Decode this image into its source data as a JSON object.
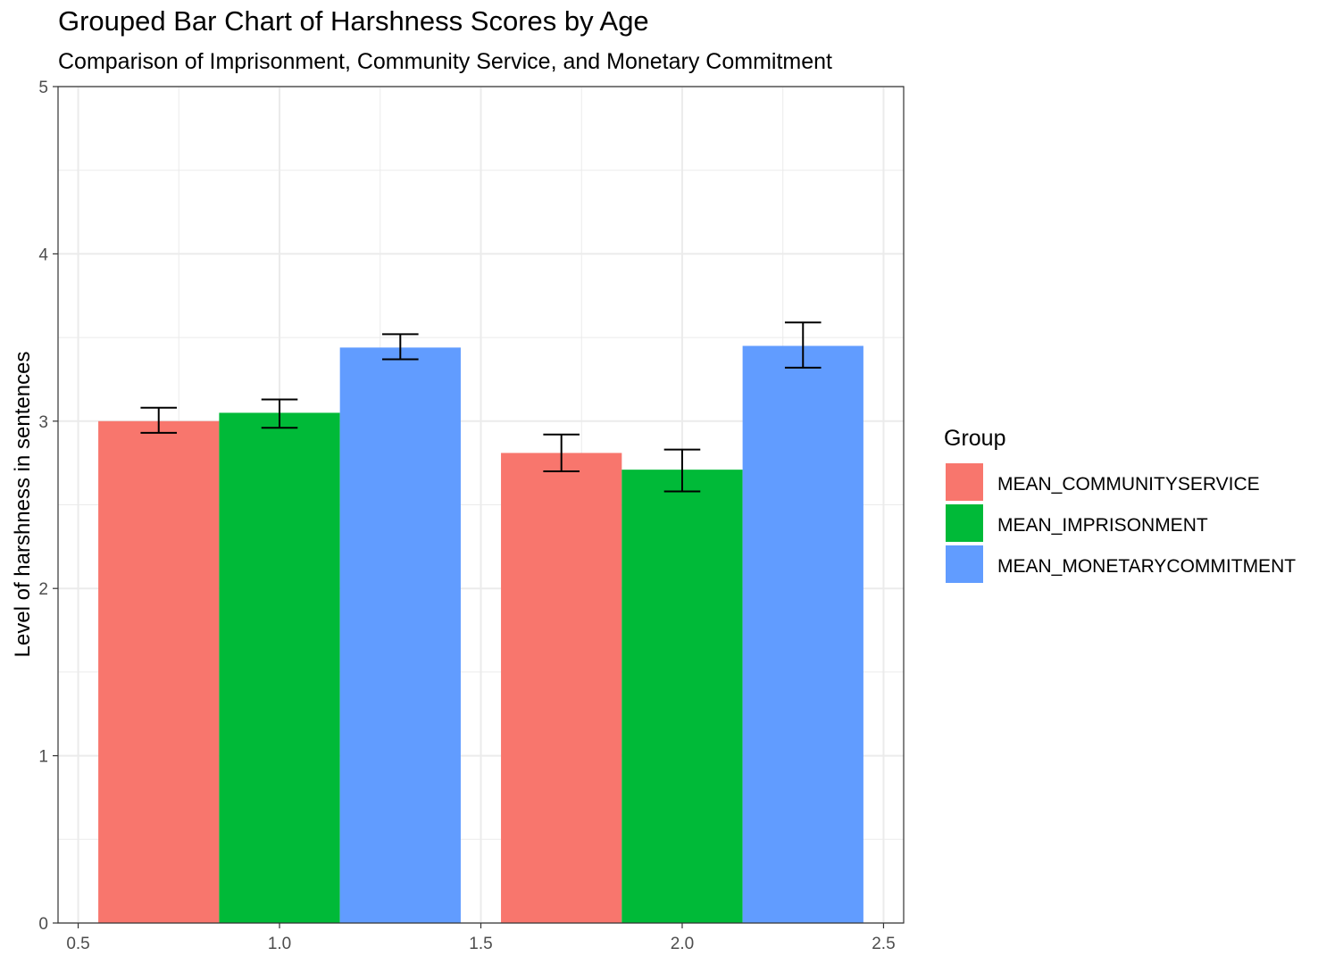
{
  "chart_data": {
    "type": "bar",
    "title": "Grouped Bar Chart of Harshness Scores by Age",
    "subtitle": "Comparison of Imprisonment, Community Service, and Monetary Commitment",
    "xlabel": "",
    "ylabel": "Level of harshness in sentences",
    "xlim": [
      0.5,
      2.5
    ],
    "ylim": [
      0,
      5
    ],
    "x_ticks": [
      "0.5",
      "1.0",
      "1.5",
      "2.0",
      "2.5"
    ],
    "y_ticks": [
      "0",
      "1",
      "2",
      "3",
      "4",
      "5"
    ],
    "grid": true,
    "legend": {
      "title": "Group",
      "position": "right"
    },
    "x": [
      1,
      2
    ],
    "bar_width": 0.9,
    "series": [
      {
        "name": "MEAN_COMMUNITYSERVICE",
        "color": "#F8766D",
        "values": [
          3.0,
          2.81
        ],
        "error_low": [
          2.93,
          2.7
        ],
        "error_high": [
          3.08,
          2.92
        ]
      },
      {
        "name": "MEAN_IMPRISONMENT",
        "color": "#00BA38",
        "values": [
          3.05,
          2.71
        ],
        "error_low": [
          2.96,
          2.58
        ],
        "error_high": [
          3.13,
          2.83
        ]
      },
      {
        "name": "MEAN_MONETARYCOMMITMENT",
        "color": "#619CFF",
        "values": [
          3.44,
          3.45
        ],
        "error_low": [
          3.37,
          3.32
        ],
        "error_high": [
          3.52,
          3.59
        ]
      }
    ]
  }
}
